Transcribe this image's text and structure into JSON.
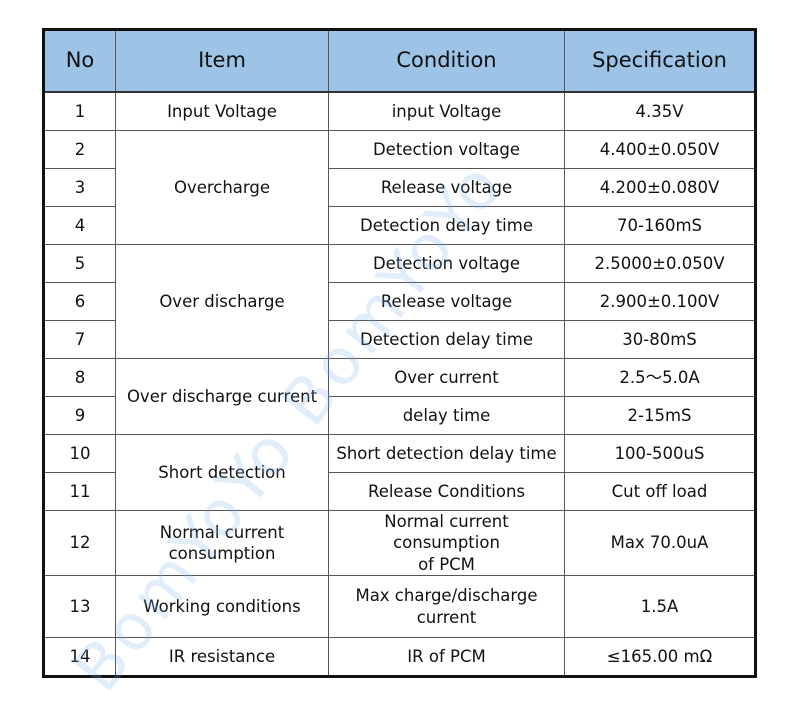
{
  "header": {
    "no": "No",
    "item": "Item",
    "condition": "Condition",
    "specification": "Specification"
  },
  "rows": [
    {
      "no": "1",
      "item": "Input Voltage",
      "condition": "input Voltage",
      "spec": "4.35V"
    },
    {
      "no": "2",
      "item": "Overcharge",
      "condition": "Detection voltage",
      "spec": "4.400±0.050V"
    },
    {
      "no": "3",
      "condition": "Release voltage",
      "spec": "4.200±0.080V"
    },
    {
      "no": "4",
      "condition": "Detection delay time",
      "spec": "70-160mS"
    },
    {
      "no": "5",
      "item": "Over discharge",
      "condition": "Detection voltage",
      "spec": "2.5000±0.050V"
    },
    {
      "no": "6",
      "condition": "Release voltage",
      "spec": "2.900±0.100V"
    },
    {
      "no": "7",
      "condition": "Detection delay time",
      "spec": "30-80mS"
    },
    {
      "no": "8",
      "item": "Over discharge current",
      "condition": "Over current",
      "spec": "2.5～5.0A"
    },
    {
      "no": "9",
      "condition": "delay time",
      "spec": "2-15mS"
    },
    {
      "no": "10",
      "item": "Short detection",
      "condition": "Short detection delay time",
      "spec": "100-500uS"
    },
    {
      "no": "11",
      "condition": "Release Conditions",
      "spec": "Cut off load"
    },
    {
      "no": "12",
      "item_line1": "Normal current",
      "item_line2": "consumption",
      "condition_line1": "Normal current consumption",
      "condition_line2": "of PCM",
      "spec": "Max 70.0uA"
    },
    {
      "no": "13",
      "item": "Working conditions",
      "condition_line1": "Max charge/discharge",
      "condition_line2": "current",
      "spec": "1.5A"
    },
    {
      "no": "14",
      "item": "IR resistance",
      "condition": "IR of PCM",
      "spec": "≤165.00 mΩ"
    }
  ],
  "watermark": "BomYoYo BomYoYo"
}
